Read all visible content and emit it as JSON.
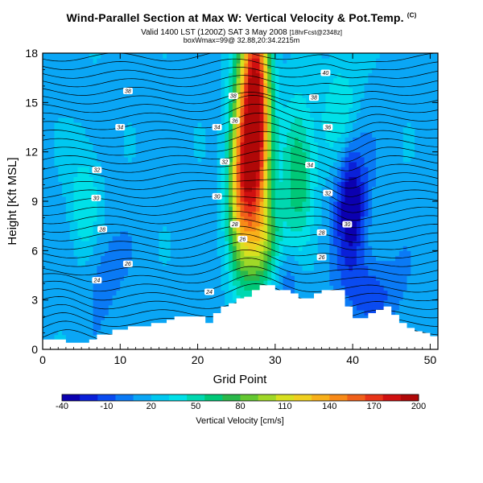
{
  "header": {
    "title": "Wind-Parallel Section at Max W: Vertical Velocity & Pot.Temp.",
    "title_mark": "(C)",
    "valid_line": "Valid 1400 LST (1200Z) SAT 3 May 2008",
    "valid_suffix": "[18hrFcst@2348z]",
    "max_line": "boxWmax=99@ 32.88,20:34.2215m"
  },
  "chart_data": {
    "type": "heatmap",
    "xlabel": "Grid Point",
    "ylabel": "Height [Kft MSL]",
    "xlim": [
      0,
      51
    ],
    "ylim": [
      0,
      18
    ],
    "x_ticks": [
      "0",
      "10",
      "20",
      "30",
      "40",
      "50"
    ],
    "y_ticks": [
      "0",
      "3",
      "6",
      "9",
      "12",
      "15",
      "18"
    ],
    "colorbar": {
      "label": "Vertical Velocity [cm/s]",
      "tick_labels": [
        "-40",
        "-10",
        "20",
        "50",
        "80",
        "110",
        "140",
        "170",
        "200"
      ],
      "colors": [
        "#0b00b0",
        "#0a20d8",
        "#0a4bf0",
        "#0a7af5",
        "#0aa6f5",
        "#00c8f0",
        "#00e0e8",
        "#00d8b0",
        "#00c878",
        "#2ab84a",
        "#64c832",
        "#a0d828",
        "#d8e020",
        "#f0d020",
        "#f8b01a",
        "#f88a18",
        "#f0601a",
        "#e83418",
        "#d01010",
        "#b00808"
      ]
    },
    "terrain": [
      [
        0,
        0.6
      ],
      [
        2,
        0.6
      ],
      [
        3,
        0.4
      ],
      [
        6,
        0.6
      ],
      [
        7,
        0.9
      ],
      [
        8,
        0.9
      ],
      [
        9,
        1.2
      ],
      [
        10,
        1.2
      ],
      [
        11,
        1.4
      ],
      [
        13,
        1.4
      ],
      [
        14,
        1.6
      ],
      [
        15,
        1.6
      ],
      [
        16,
        1.8
      ],
      [
        17,
        2.0
      ],
      [
        18,
        2.0
      ],
      [
        19,
        2.0
      ],
      [
        20,
        2.0
      ],
      [
        21,
        1.6
      ],
      [
        22,
        2.2
      ],
      [
        23,
        2.6
      ],
      [
        24,
        2.8
      ],
      [
        25,
        3.1
      ],
      [
        26,
        3.2
      ],
      [
        27,
        3.6
      ],
      [
        28,
        3.9
      ],
      [
        29,
        3.9
      ],
      [
        30,
        3.6
      ],
      [
        31,
        3.6
      ],
      [
        32,
        3.4
      ],
      [
        33,
        3.1
      ],
      [
        34,
        3.1
      ],
      [
        35,
        3.4
      ],
      [
        36,
        3.6
      ],
      [
        38,
        3.6
      ],
      [
        39,
        2.6
      ],
      [
        40,
        1.9
      ],
      [
        41,
        1.9
      ],
      [
        42,
        2.2
      ],
      [
        43,
        2.4
      ],
      [
        44,
        2.6
      ],
      [
        45,
        2.1
      ],
      [
        46,
        1.6
      ],
      [
        47,
        1.3
      ],
      [
        48,
        1.1
      ],
      [
        49,
        1.0
      ],
      [
        50,
        0.8
      ],
      [
        51,
        0.9
      ]
    ],
    "w_features": [
      {
        "x": 27.5,
        "z": 14.5,
        "sx": 1.3,
        "sz": 5.5,
        "w": 190
      },
      {
        "x": 25.5,
        "z": 10.5,
        "sx": 1.2,
        "sz": 4.0,
        "w": 110
      },
      {
        "x": 29.0,
        "z": 6.5,
        "sx": 1.5,
        "sz": 2.0,
        "w": 50
      },
      {
        "x": 33.0,
        "z": 11.0,
        "sx": 1.5,
        "sz": 3.0,
        "w": 55
      },
      {
        "x": 38.5,
        "z": 14.5,
        "sx": 1.8,
        "sz": 2.5,
        "w": 30
      },
      {
        "x": 39.8,
        "z": 9.0,
        "sx": 1.4,
        "sz": 2.8,
        "w": -60
      },
      {
        "x": 42.5,
        "z": 3.5,
        "sx": 2.5,
        "sz": 1.5,
        "w": -25
      },
      {
        "x": 5.5,
        "z": 8.5,
        "sx": 1.5,
        "sz": 3.0,
        "w": 30
      },
      {
        "x": 7.0,
        "z": 5.0,
        "sx": 2.0,
        "sz": 2.0,
        "w": -20
      },
      {
        "x": 31.5,
        "z": 4.5,
        "sx": 1.5,
        "sz": 1.2,
        "w": -20
      }
    ],
    "theta_label_pts": [
      {
        "x": 11.0,
        "z": 15.7,
        "t": "38"
      },
      {
        "x": 10.0,
        "z": 13.5,
        "t": "34"
      },
      {
        "x": 7.0,
        "z": 10.9,
        "t": "32"
      },
      {
        "x": 6.9,
        "z": 9.2,
        "t": "30"
      },
      {
        "x": 7.7,
        "z": 7.3,
        "t": "28"
      },
      {
        "x": 11.0,
        "z": 5.2,
        "t": "26"
      },
      {
        "x": 7.0,
        "z": 4.2,
        "t": "24"
      },
      {
        "x": 21.5,
        "z": 3.5,
        "t": "24"
      },
      {
        "x": 22.5,
        "z": 13.5,
        "t": "34"
      },
      {
        "x": 24.6,
        "z": 15.4,
        "t": "38"
      },
      {
        "x": 24.8,
        "z": 13.9,
        "t": "36"
      },
      {
        "x": 23.5,
        "z": 11.4,
        "t": "32"
      },
      {
        "x": 22.5,
        "z": 9.3,
        "t": "30"
      },
      {
        "x": 24.8,
        "z": 7.6,
        "t": "28"
      },
      {
        "x": 25.8,
        "z": 6.7,
        "t": "26"
      },
      {
        "x": 35.0,
        "z": 15.3,
        "t": "38"
      },
      {
        "x": 36.8,
        "z": 13.5,
        "t": "36"
      },
      {
        "x": 34.5,
        "z": 11.2,
        "t": "34"
      },
      {
        "x": 36.8,
        "z": 9.5,
        "t": "32"
      },
      {
        "x": 39.3,
        "z": 7.6,
        "t": "30"
      },
      {
        "x": 36.0,
        "z": 7.1,
        "t": "28"
      },
      {
        "x": 36.0,
        "z": 5.6,
        "t": "26"
      },
      {
        "x": 36.5,
        "z": 16.8,
        "t": "40"
      }
    ]
  }
}
